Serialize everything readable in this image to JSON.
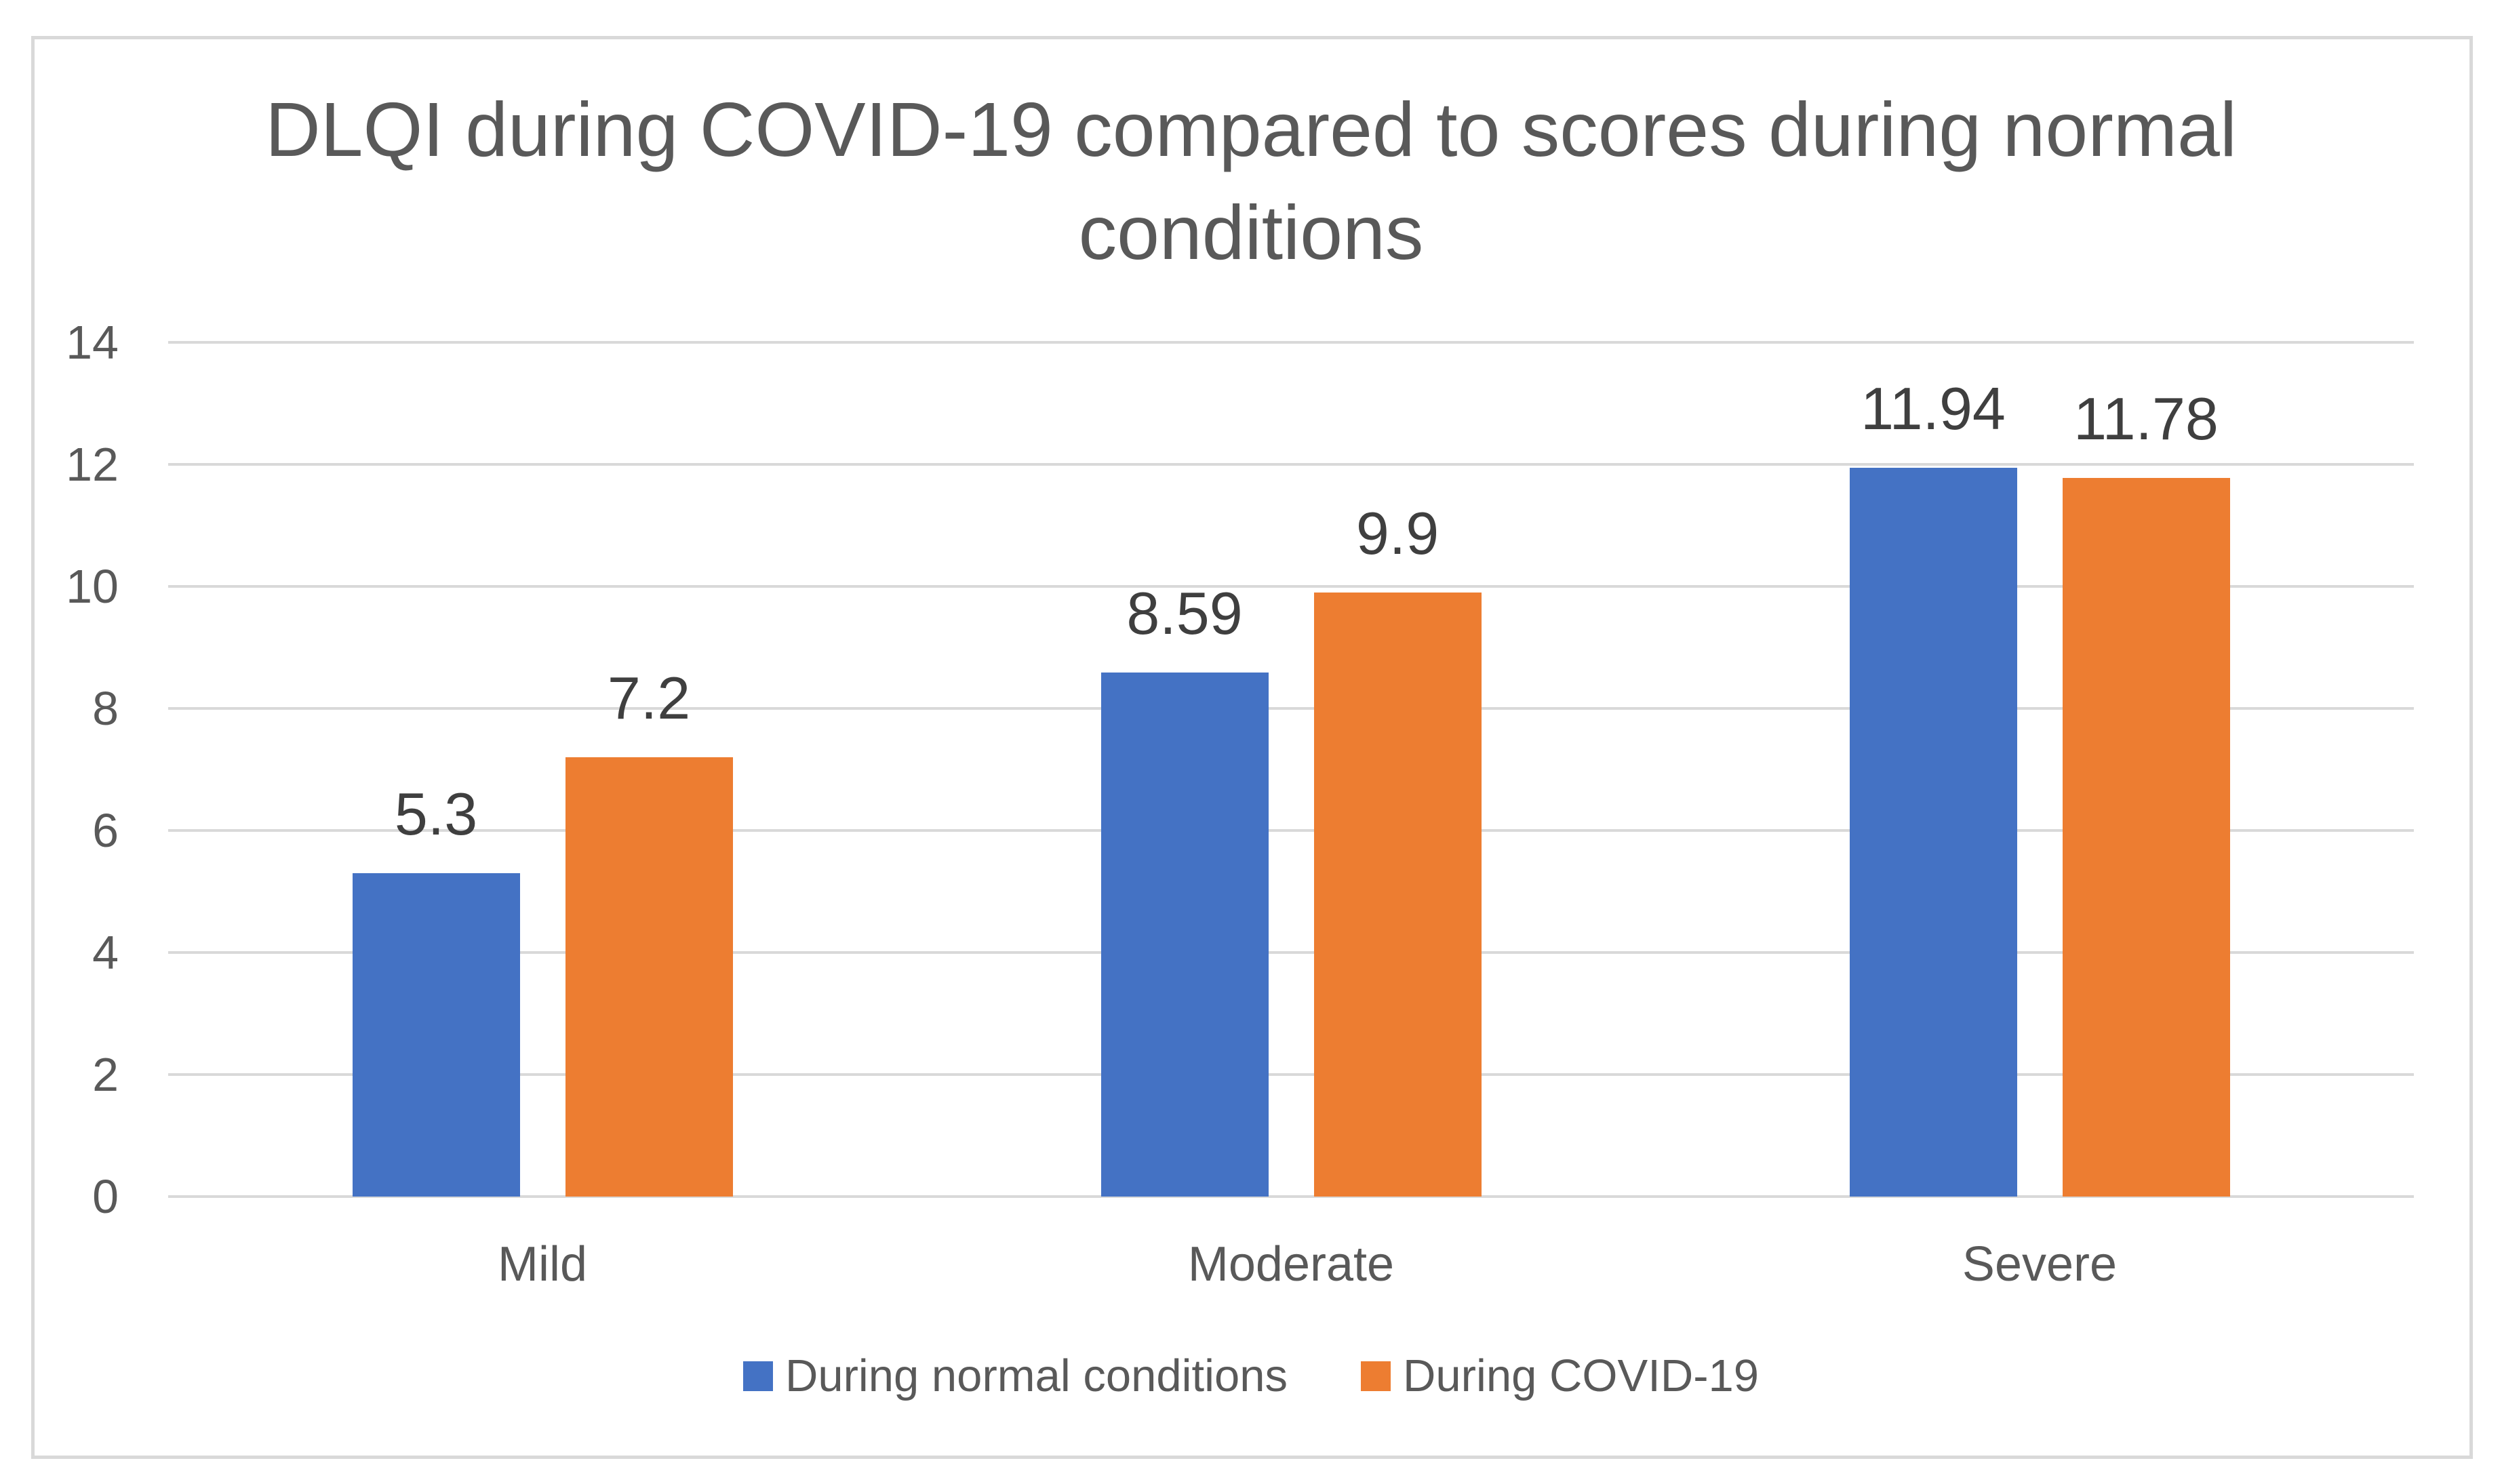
{
  "title": "DLQI during COVID-19 compared to scores during normal conditions",
  "colors": {
    "series_blue": "#4472C4",
    "series_orange": "#ED7D31",
    "gridline": "#D9D9D9",
    "frame_border": "#D9D9D9",
    "title_text": "#595959",
    "axis_text": "#595959",
    "data_label_text": "#3F3F3F"
  },
  "chart_data": {
    "type": "bar",
    "title": "DLQI during COVID-19 compared to scores during normal conditions",
    "categories": [
      "Mild",
      "Moderate",
      "Severe"
    ],
    "series": [
      {
        "name": "During normal conditions",
        "color": "#4472C4",
        "values": [
          5.3,
          8.59,
          11.94
        ],
        "data_labels": [
          "5.3",
          "8.59",
          "11.94"
        ]
      },
      {
        "name": "During COVID-19",
        "color": "#ED7D31",
        "values": [
          7.2,
          9.9,
          11.78
        ],
        "data_labels": [
          "7.2",
          "9.9",
          "11.78"
        ]
      }
    ],
    "xlabel": "",
    "ylabel": "",
    "ylim": [
      0,
      14
    ],
    "yticks": [
      0,
      2,
      4,
      6,
      8,
      10,
      12,
      14
    ],
    "grid": true,
    "gridlines": "horizontal",
    "legend_position": "bottom",
    "data_labels_shown": true
  }
}
